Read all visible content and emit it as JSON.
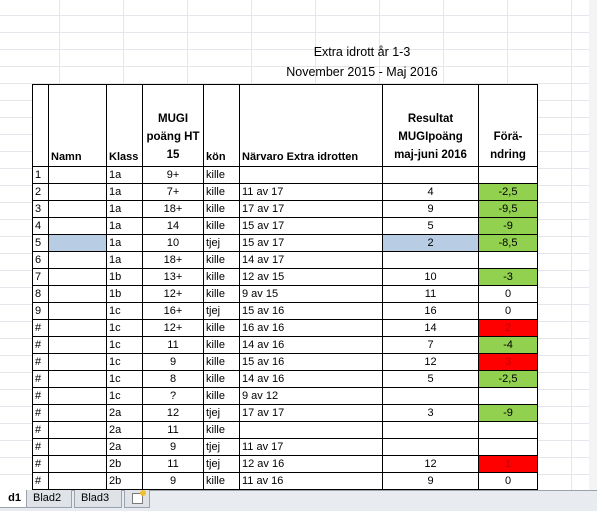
{
  "title": {
    "line1": "Extra idrott år 1-3",
    "line2": "November 2015 - Maj 2016"
  },
  "headers": {
    "namn": "Namn",
    "klass": "Klass",
    "mugi_l1": "MUGI",
    "mugi_l2": "poäng HT",
    "mugi_l3": "15",
    "kon": "kön",
    "narvaro": "Närvaro Extra idrotten",
    "res_l1": "Resultat",
    "res_l2": "MUGIpoäng",
    "res_l3": "maj-juni 2016",
    "chg_l1": "Förä-",
    "chg_l2": "ndring"
  },
  "rows": [
    {
      "nr": "1",
      "namn": "",
      "klass": "1a",
      "poang": "9+",
      "kon": "kille",
      "narvaro": "",
      "resultat": "",
      "forandring": "",
      "color": ""
    },
    {
      "nr": "2",
      "namn": "",
      "klass": "1a",
      "poang": "7+",
      "kon": "kille",
      "narvaro": "11 av 17",
      "resultat": "4",
      "forandring": "-2,5",
      "color": "green"
    },
    {
      "nr": "3",
      "namn": "",
      "klass": "1a",
      "poang": "18+",
      "kon": "kille",
      "narvaro": "17 av 17",
      "resultat": "9",
      "forandring": "-9,5",
      "color": "green"
    },
    {
      "nr": "4",
      "namn": "",
      "klass": "1a",
      "poang": "14",
      "kon": "kille",
      "narvaro": "15 av 17",
      "resultat": "5",
      "forandring": "-9",
      "color": "green"
    },
    {
      "nr": "5",
      "namn": "",
      "klass": "1a",
      "poang": "10",
      "kon": "tjej",
      "narvaro": "15 av 17",
      "resultat": "2",
      "forandring": "-8,5",
      "color": "green"
    },
    {
      "nr": "6",
      "namn": "",
      "klass": "1a",
      "poang": "18+",
      "kon": "kille",
      "narvaro": "14 av 17",
      "resultat": "",
      "forandring": "",
      "color": ""
    },
    {
      "nr": "7",
      "namn": "",
      "klass": "1b",
      "poang": "13+",
      "kon": "kille",
      "narvaro": "12 av 15",
      "resultat": "10",
      "forandring": "-3",
      "color": "green"
    },
    {
      "nr": "8",
      "namn": "",
      "klass": "1b",
      "poang": "12+",
      "kon": "kille",
      "narvaro": "9 av 15",
      "resultat": "11",
      "forandring": "0",
      "color": ""
    },
    {
      "nr": "9",
      "namn": "",
      "klass": "1c",
      "poang": "16+",
      "kon": "tjej",
      "narvaro": "15 av 16",
      "resultat": "16",
      "forandring": "0",
      "color": ""
    },
    {
      "nr": "#",
      "namn": "",
      "klass": "1c",
      "poang": "12+",
      "kon": "kille",
      "narvaro": "16 av 16",
      "resultat": "14",
      "forandring": "2",
      "color": "red"
    },
    {
      "nr": "#",
      "namn": "",
      "klass": "1c",
      "poang": "11",
      "kon": "kille",
      "narvaro": "14 av 16",
      "resultat": "7",
      "forandring": "-4",
      "color": "green"
    },
    {
      "nr": "#",
      "namn": "",
      "klass": "1c",
      "poang": "9",
      "kon": "kille",
      "narvaro": "15 av 16",
      "resultat": "12",
      "forandring": "3",
      "color": "red"
    },
    {
      "nr": "#",
      "namn": "",
      "klass": "1c",
      "poang": "8",
      "kon": "kille",
      "narvaro": "14 av 16",
      "resultat": "5",
      "forandring": "-2,5",
      "color": "green"
    },
    {
      "nr": "#",
      "namn": "",
      "klass": "1c",
      "poang": "?",
      "kon": "kille",
      "narvaro": "9 av 12",
      "resultat": "",
      "forandring": "",
      "color": ""
    },
    {
      "nr": "#",
      "namn": "",
      "klass": "2a",
      "poang": "12",
      "kon": "tjej",
      "narvaro": "17 av 17",
      "resultat": "3",
      "forandring": "-9",
      "color": "green"
    },
    {
      "nr": "#",
      "namn": "",
      "klass": "2a",
      "poang": "11",
      "kon": "kille",
      "narvaro": "",
      "resultat": "",
      "forandring": "",
      "color": ""
    },
    {
      "nr": "#",
      "namn": "",
      "klass": "2a",
      "poang": "9",
      "kon": "tjej",
      "narvaro": "11 av 17",
      "resultat": "",
      "forandring": "",
      "color": ""
    },
    {
      "nr": "#",
      "namn": "",
      "klass": "2b",
      "poang": "11",
      "kon": "tjej",
      "narvaro": "12 av 16",
      "resultat": "12",
      "forandring": "1",
      "color": "red"
    },
    {
      "nr": "#",
      "namn": "",
      "klass": "2b",
      "poang": "9",
      "kon": "kille",
      "narvaro": "11 av 16",
      "resultat": "9",
      "forandring": "0",
      "color": ""
    }
  ],
  "selected_row": 4,
  "small_narvaro_rows": [
    6,
    7,
    9,
    10,
    12,
    13,
    14
  ],
  "colors": {
    "green": "#92d050",
    "red": "#ff0000",
    "selected": "#b8cce4"
  },
  "tabs": {
    "tab1": "d1",
    "tab2": "Blad2",
    "tab3": "Blad3"
  }
}
